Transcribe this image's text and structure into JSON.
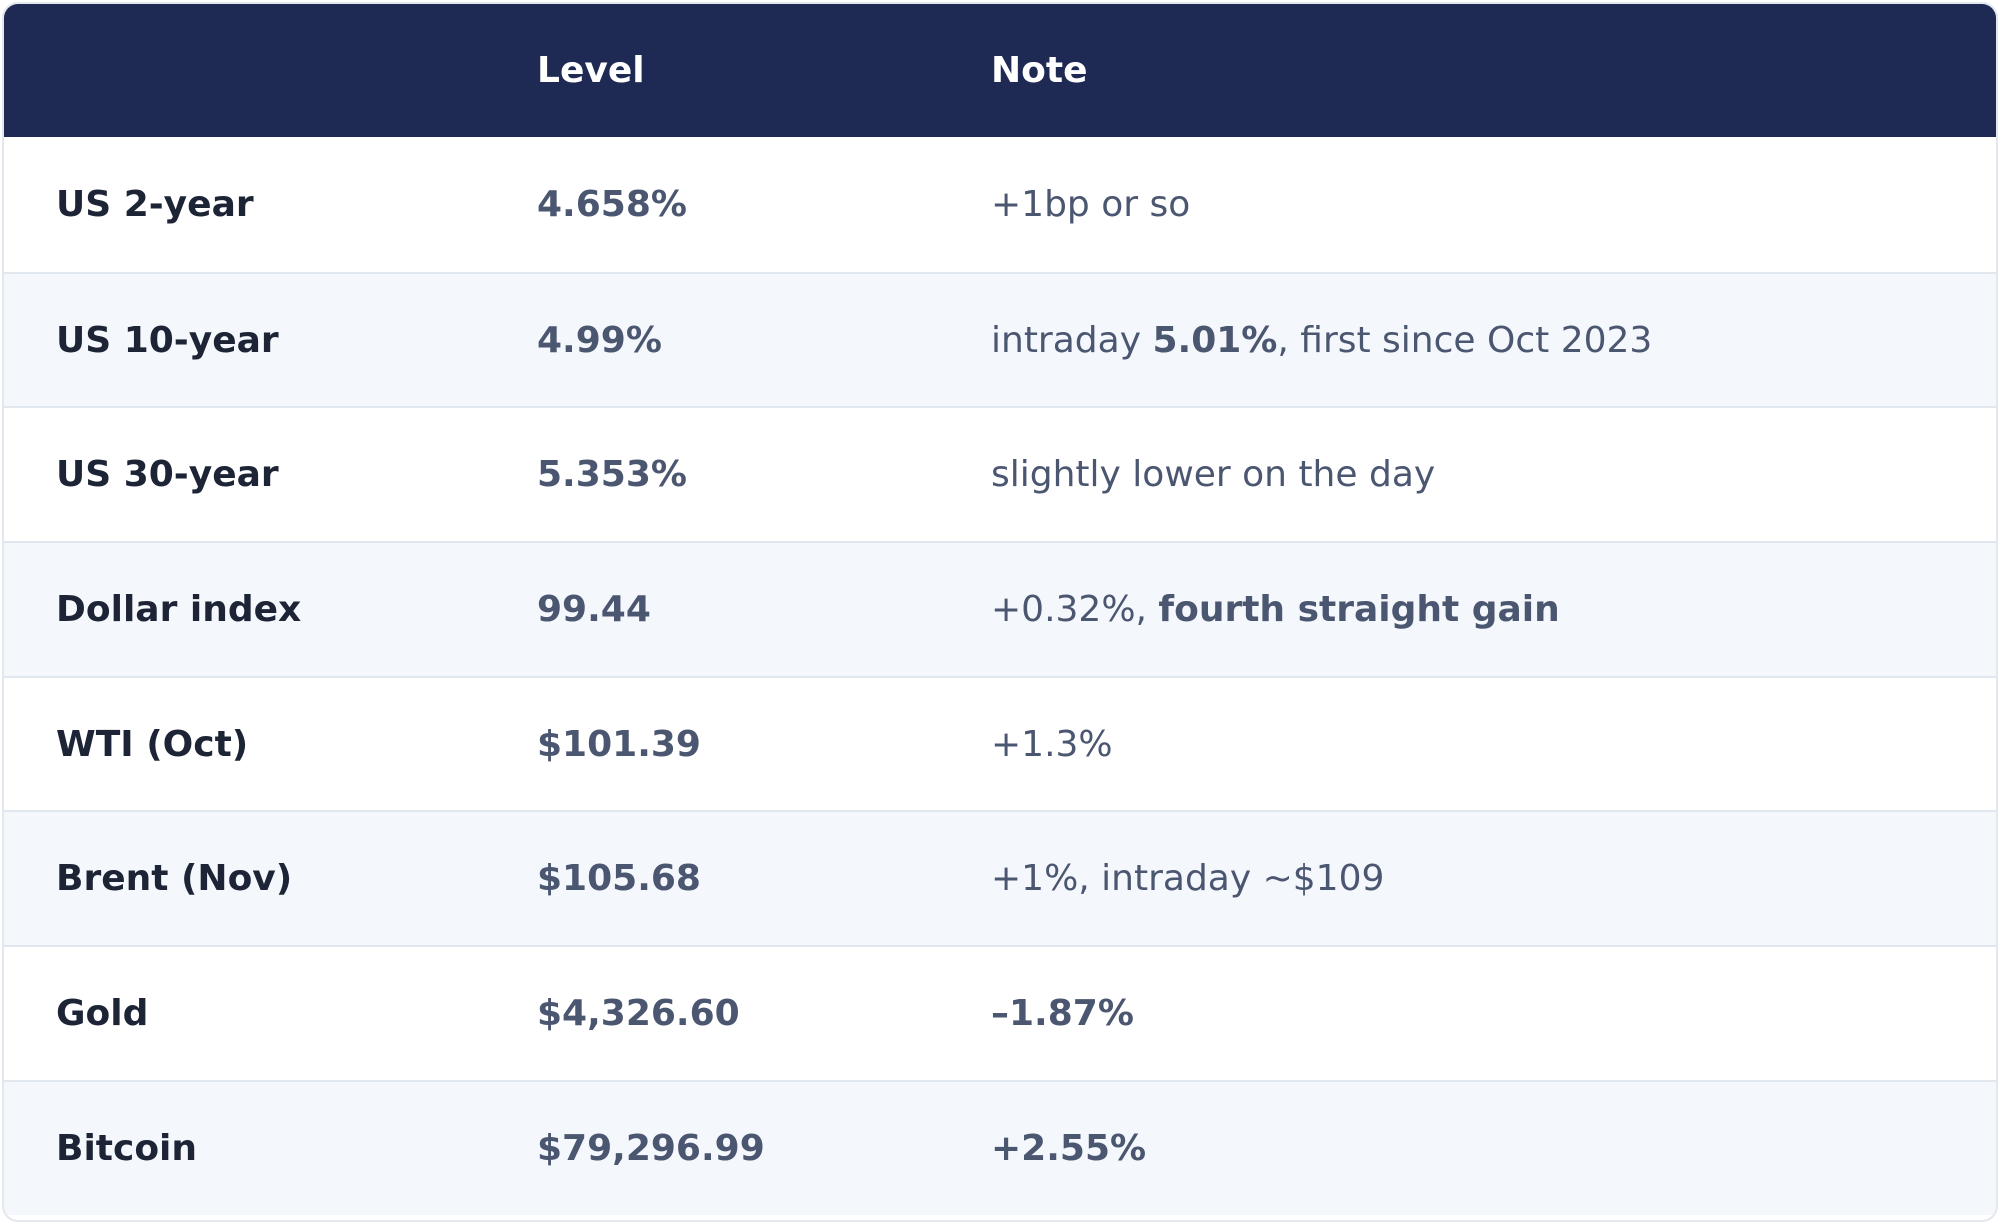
{
  "header": {
    "col1": "",
    "col2": "Level",
    "col3": "Note"
  },
  "rows": [
    {
      "name": "US 2-year",
      "level": "4.658%",
      "note_pre": "+1bp or so",
      "note_bold": "",
      "note_post": ""
    },
    {
      "name": "US 10-year",
      "level": "4.99%",
      "note_pre": "intraday ",
      "note_bold": "5.01%",
      "note_post": ", first since Oct 2023"
    },
    {
      "name": "US 30-year",
      "level": "5.353%",
      "note_pre": "slightly lower on the day",
      "note_bold": "",
      "note_post": ""
    },
    {
      "name": "Dollar index",
      "level": "99.44",
      "note_pre": "+0.32%, ",
      "note_bold": "fourth straight gain",
      "note_post": ""
    },
    {
      "name": "WTI (Oct)",
      "level": "$101.39",
      "note_pre": "+1.3%",
      "note_bold": "",
      "note_post": ""
    },
    {
      "name": "Brent (Nov)",
      "level": "$105.68",
      "note_pre": "+1%, intraday ~$109",
      "note_bold": "",
      "note_post": ""
    },
    {
      "name": "Gold",
      "level": "$4,326.60",
      "note_pre": "",
      "note_bold": "–1.87%",
      "note_post": ""
    },
    {
      "name": "Bitcoin",
      "level": "$79,296.99",
      "note_pre": "",
      "note_bold": "+2.55%",
      "note_post": ""
    }
  ],
  "colors": {
    "header_bg": "#1e2a54",
    "header_text": "#ffffff",
    "row_alt_bg": "#f4f7fb",
    "label_text": "#1c2436",
    "value_text": "#4b5670",
    "border": "#e1e7ef"
  }
}
